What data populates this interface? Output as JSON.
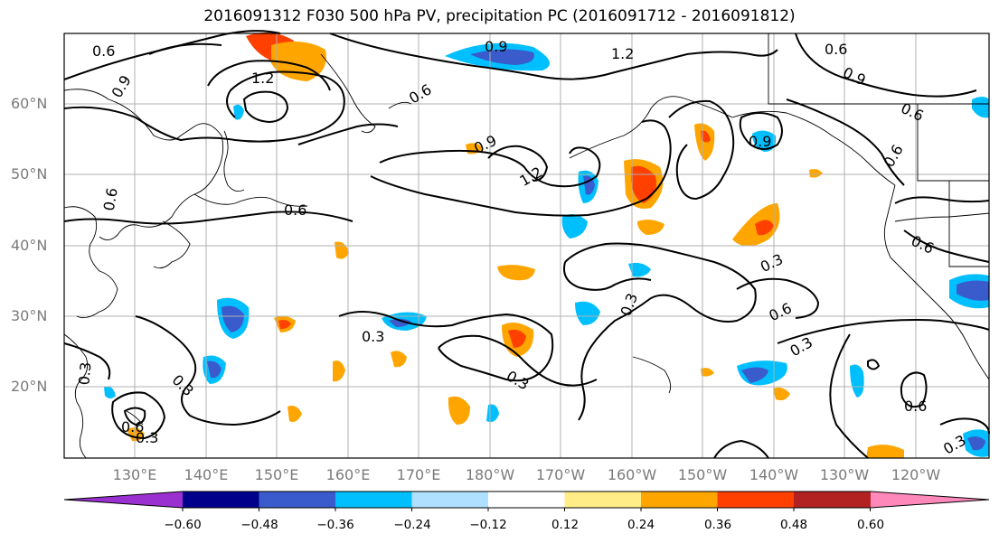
{
  "title": "2016091312 F030 500 hPa PV, precipitation PC (2016091712 - 2016091812)",
  "map": {
    "lat_labels": [
      "60°N",
      "50°N",
      "40°N",
      "30°N",
      "20°N"
    ],
    "lon_labels": [
      "130°E",
      "140°E",
      "150°E",
      "160°E",
      "170°E",
      "180°W",
      "170°W",
      "160°W",
      "150°W",
      "140°W",
      "130°W",
      "120°W"
    ],
    "pv_contour_labels": [
      "0.6",
      "0.9",
      "1.2",
      "0.9",
      "1.2",
      "0.6",
      "0.6",
      "0.9",
      "0.9",
      "0.6",
      "0.9",
      "1.2",
      "0.6",
      "0.6",
      "0.6",
      "0.6",
      "0.6",
      "0.3",
      "0.3",
      "0.3",
      "0.6",
      "0.3",
      "0.3",
      "0.3",
      "0.6",
      "0.3",
      "0.3",
      "0.3",
      "0.6",
      "0.3"
    ]
  },
  "colorbar": {
    "colors": [
      "#9b30d0",
      "#00008b",
      "#3a5bcc",
      "#00bfff",
      "#b0e0ff",
      "#ffffff",
      "#ffee88",
      "#ffa500",
      "#ff4000",
      "#b22222",
      "#ff88bb"
    ],
    "tick_labels": [
      "−0.60",
      "−0.48",
      "−0.36",
      "−0.24",
      "−0.12",
      "0.12",
      "0.24",
      "0.36",
      "0.48",
      "0.60"
    ]
  }
}
